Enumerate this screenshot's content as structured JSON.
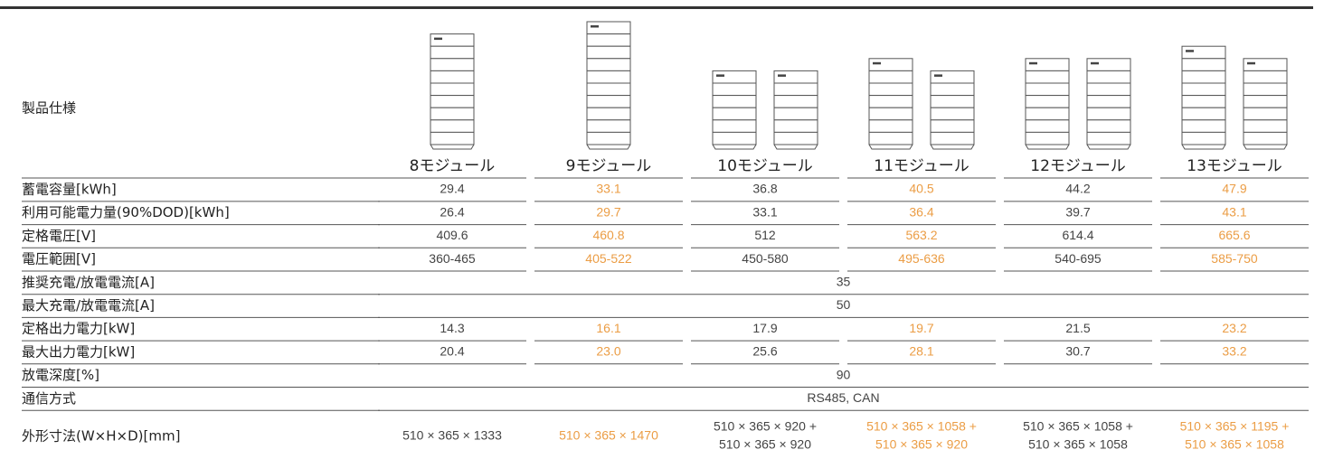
{
  "header": {
    "title": "製品仕様",
    "columns": [
      "8モジュール",
      "9モジュール",
      "10モジュール",
      "11モジュール",
      "12モジュール",
      "13モジュール"
    ]
  },
  "table": {
    "rows": [
      {
        "label": "蓄電容量[kWh]",
        "values": [
          "29.4",
          "33.1",
          "36.8",
          "40.5",
          "44.2",
          "47.9"
        ]
      },
      {
        "label": "利用可能電力量(90%DOD)[kWh]",
        "values": [
          "26.4",
          "29.7",
          "33.1",
          "36.4",
          "39.7",
          "43.1"
        ]
      },
      {
        "label": "定格電圧[V]",
        "values": [
          "409.6",
          "460.8",
          "512",
          "563.2",
          "614.4",
          "665.6"
        ]
      },
      {
        "label": "電圧範囲[V]",
        "values": [
          "360-465",
          "405-522",
          "450-580",
          "495-636",
          "540-695",
          "585-750"
        ]
      },
      {
        "label": "推奨充電/放電電流[A]",
        "value": "35"
      },
      {
        "label": "最大充電/放電電流[A]",
        "value": "50"
      },
      {
        "label": "定格出力電力[kW]",
        "values": [
          "14.3",
          "16.1",
          "17.9",
          "19.7",
          "21.5",
          "23.2"
        ]
      },
      {
        "label": "最大出力電力[kW]",
        "values": [
          "20.4",
          "23.0",
          "25.6",
          "28.1",
          "30.7",
          "33.2"
        ]
      },
      {
        "label": "放電深度[%]",
        "value": "90"
      },
      {
        "label": "通信方式",
        "value": "RS485, CAN"
      },
      {
        "label": "外形寸法(W×H×D)[mm]",
        "values": [
          [
            "510 × 365 × 1333"
          ],
          [
            "510 × 365 × 1470"
          ],
          [
            "510 × 365 × 920 +",
            "510 × 365 × 920"
          ],
          [
            "510 × 365 × 1058 +",
            "510 × 365 × 920"
          ],
          [
            "510 × 365 × 1058 +",
            "510 × 365 × 1058"
          ],
          [
            "510 × 365 × 1195 +",
            "510 × 365 × 1058"
          ]
        ]
      }
    ]
  }
}
